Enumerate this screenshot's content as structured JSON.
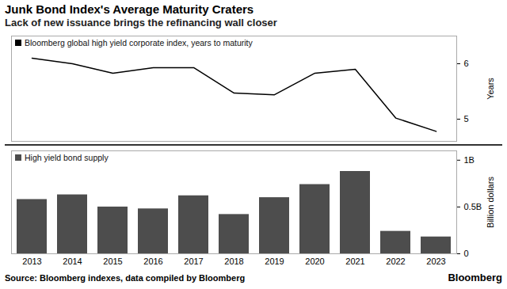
{
  "title": "Junk Bond Index's Average Maturity Craters",
  "subtitle": "Lack of new issuance brings the refinancing wall closer",
  "source": "Source: Bloomberg indexes, data compiled by Bloomberg",
  "brand": "Bloomberg",
  "chart_data": [
    {
      "type": "line",
      "categories": [
        "2013",
        "2014",
        "2015",
        "2016",
        "2017",
        "2018",
        "2019",
        "2020",
        "2021",
        "2022",
        "2023"
      ],
      "series": [
        {
          "name": "Bloomberg global high yield corporate index, years to maturity",
          "color": "#000000",
          "values": [
            6.1,
            6.0,
            5.83,
            5.93,
            5.93,
            5.47,
            5.44,
            5.83,
            5.9,
            5.02,
            4.78
          ]
        }
      ],
      "ylabel": "Years",
      "ylim": [
        4.6,
        6.5
      ],
      "yticks": [
        5,
        6
      ],
      "grid": false,
      "legend": "upper left",
      "tick_labels": "y"
    },
    {
      "type": "bar",
      "categories": [
        "2013",
        "2014",
        "2015",
        "2016",
        "2017",
        "2018",
        "2019",
        "2020",
        "2021",
        "2022",
        "2023"
      ],
      "series": [
        {
          "name": "High yield bond supply",
          "color": "#4d4d4d",
          "values": [
            0.58,
            0.63,
            0.5,
            0.48,
            0.62,
            0.42,
            0.6,
            0.74,
            0.88,
            0.24,
            0.18
          ]
        }
      ],
      "ylabel": "Billion dollars",
      "ylim": [
        0,
        1.1
      ],
      "yticks": [
        0,
        {
          "value": 0.5,
          "label": "0.5B"
        },
        {
          "value": 1,
          "label": "1B"
        }
      ],
      "grid": false,
      "legend": "upper left"
    }
  ]
}
